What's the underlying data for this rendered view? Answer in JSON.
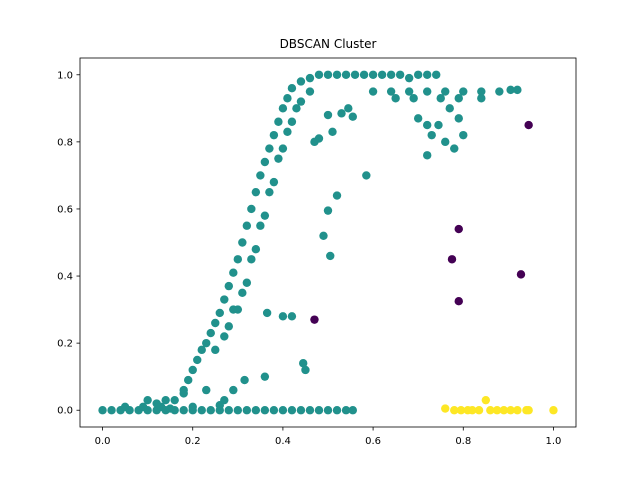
{
  "chart_data": {
    "type": "scatter",
    "title": "DBSCAN Cluster",
    "xlabel": "",
    "ylabel": "",
    "xlim": [
      -0.05,
      1.05
    ],
    "ylim": [
      -0.05,
      1.05
    ],
    "xticks": [
      0.0,
      0.2,
      0.4,
      0.6,
      0.8,
      1.0
    ],
    "xtick_labels": [
      "0.0",
      "0.2",
      "0.4",
      "0.6",
      "0.8",
      "1.0"
    ],
    "yticks": [
      0.0,
      0.2,
      0.4,
      0.6,
      0.8,
      1.0
    ],
    "ytick_labels": [
      "0.0",
      "0.2",
      "0.4",
      "0.6",
      "0.8",
      "1.0"
    ],
    "grid": false,
    "legend": "none",
    "colormap": "viridis",
    "series": [
      {
        "color": "#440154",
        "points": [
          [
            0.945,
            0.85
          ],
          [
            0.79,
            0.54
          ],
          [
            0.775,
            0.45
          ],
          [
            0.928,
            0.405
          ],
          [
            0.79,
            0.325
          ],
          [
            0.47,
            0.27
          ]
        ]
      },
      {
        "color": "#21918c",
        "points": [
          [
            0.0,
            0.0
          ],
          [
            0.02,
            0.0
          ],
          [
            0.04,
            0.0
          ],
          [
            0.06,
            0.0
          ],
          [
            0.08,
            0.0
          ],
          [
            0.1,
            0.0
          ],
          [
            0.12,
            0.0
          ],
          [
            0.14,
            0.0
          ],
          [
            0.16,
            0.0
          ],
          [
            0.18,
            0.0
          ],
          [
            0.2,
            0.0
          ],
          [
            0.22,
            0.0
          ],
          [
            0.24,
            0.0
          ],
          [
            0.26,
            0.0
          ],
          [
            0.28,
            0.0
          ],
          [
            0.3,
            0.0
          ],
          [
            0.32,
            0.0
          ],
          [
            0.34,
            0.0
          ],
          [
            0.36,
            0.0
          ],
          [
            0.38,
            0.0
          ],
          [
            0.4,
            0.0
          ],
          [
            0.42,
            0.0
          ],
          [
            0.44,
            0.0
          ],
          [
            0.46,
            0.0
          ],
          [
            0.48,
            0.0
          ],
          [
            0.5,
            0.0
          ],
          [
            0.52,
            0.0
          ],
          [
            0.54,
            0.0
          ],
          [
            0.555,
            0.0
          ],
          [
            0.05,
            0.01
          ],
          [
            0.1,
            0.03
          ],
          [
            0.13,
            0.01
          ],
          [
            0.16,
            0.03
          ],
          [
            0.18,
            0.06
          ],
          [
            0.19,
            0.09
          ],
          [
            0.2,
            0.12
          ],
          [
            0.21,
            0.15
          ],
          [
            0.22,
            0.18
          ],
          [
            0.23,
            0.2
          ],
          [
            0.24,
            0.23
          ],
          [
            0.25,
            0.26
          ],
          [
            0.26,
            0.29
          ],
          [
            0.27,
            0.33
          ],
          [
            0.28,
            0.37
          ],
          [
            0.29,
            0.41
          ],
          [
            0.3,
            0.45
          ],
          [
            0.31,
            0.5
          ],
          [
            0.32,
            0.55
          ],
          [
            0.33,
            0.6
          ],
          [
            0.34,
            0.65
          ],
          [
            0.35,
            0.7
          ],
          [
            0.36,
            0.74
          ],
          [
            0.37,
            0.78
          ],
          [
            0.38,
            0.82
          ],
          [
            0.39,
            0.86
          ],
          [
            0.4,
            0.9
          ],
          [
            0.41,
            0.93
          ],
          [
            0.42,
            0.96
          ],
          [
            0.44,
            0.98
          ],
          [
            0.46,
            0.99
          ],
          [
            0.48,
            1.0
          ],
          [
            0.5,
            1.0
          ],
          [
            0.52,
            1.0
          ],
          [
            0.54,
            1.0
          ],
          [
            0.56,
            1.0
          ],
          [
            0.58,
            1.0
          ],
          [
            0.6,
            1.0
          ],
          [
            0.62,
            1.0
          ],
          [
            0.64,
            1.0
          ],
          [
            0.66,
            1.0
          ],
          [
            0.68,
            0.99
          ],
          [
            0.7,
            1.0
          ],
          [
            0.72,
            1.0
          ],
          [
            0.74,
            1.0
          ],
          [
            0.25,
            0.18
          ],
          [
            0.27,
            0.22
          ],
          [
            0.29,
            0.3
          ],
          [
            0.31,
            0.35
          ],
          [
            0.33,
            0.45
          ],
          [
            0.35,
            0.55
          ],
          [
            0.37,
            0.65
          ],
          [
            0.39,
            0.75
          ],
          [
            0.41,
            0.83
          ],
          [
            0.43,
            0.9
          ],
          [
            0.28,
            0.25
          ],
          [
            0.3,
            0.3
          ],
          [
            0.32,
            0.38
          ],
          [
            0.34,
            0.48
          ],
          [
            0.36,
            0.58
          ],
          [
            0.38,
            0.68
          ],
          [
            0.4,
            0.78
          ],
          [
            0.42,
            0.86
          ],
          [
            0.44,
            0.92
          ],
          [
            0.46,
            0.95
          ],
          [
            0.6,
            0.95
          ],
          [
            0.64,
            0.95
          ],
          [
            0.68,
            0.95
          ],
          [
            0.72,
            0.95
          ],
          [
            0.76,
            0.95
          ],
          [
            0.8,
            0.95
          ],
          [
            0.84,
            0.95
          ],
          [
            0.88,
            0.95
          ],
          [
            0.905,
            0.955
          ],
          [
            0.92,
            0.955
          ],
          [
            0.65,
            0.93
          ],
          [
            0.69,
            0.93
          ],
          [
            0.75,
            0.93
          ],
          [
            0.79,
            0.93
          ],
          [
            0.84,
            0.93
          ],
          [
            0.7,
            0.87
          ],
          [
            0.72,
            0.85
          ],
          [
            0.73,
            0.82
          ],
          [
            0.745,
            0.85
          ],
          [
            0.76,
            0.8
          ],
          [
            0.78,
            0.78
          ],
          [
            0.72,
            0.76
          ],
          [
            0.8,
            0.82
          ],
          [
            0.79,
            0.87
          ],
          [
            0.77,
            0.9
          ],
          [
            0.49,
            0.52
          ],
          [
            0.505,
            0.46
          ],
          [
            0.5,
            0.595
          ],
          [
            0.52,
            0.64
          ],
          [
            0.585,
            0.7
          ],
          [
            0.51,
            0.83
          ],
          [
            0.48,
            0.81
          ],
          [
            0.47,
            0.8
          ],
          [
            0.5,
            0.88
          ],
          [
            0.53,
            0.885
          ],
          [
            0.555,
            0.875
          ],
          [
            0.545,
            0.9
          ],
          [
            0.4,
            0.28
          ],
          [
            0.42,
            0.28
          ],
          [
            0.365,
            0.29
          ],
          [
            0.18,
            0.05
          ],
          [
            0.23,
            0.06
          ],
          [
            0.29,
            0.06
          ],
          [
            0.315,
            0.09
          ],
          [
            0.36,
            0.1
          ],
          [
            0.445,
            0.14
          ],
          [
            0.45,
            0.12
          ],
          [
            0.27,
            0.03
          ],
          [
            0.2,
            0.01
          ],
          [
            0.26,
            0.015
          ],
          [
            0.12,
            0.02
          ],
          [
            0.15,
            0.005
          ],
          [
            0.14,
            0.03
          ],
          [
            0.09,
            0.01
          ]
        ]
      },
      {
        "color": "#fde725",
        "points": [
          [
            0.76,
            0.005
          ],
          [
            0.78,
            0.0
          ],
          [
            0.795,
            0.0
          ],
          [
            0.81,
            0.0
          ],
          [
            0.82,
            0.0
          ],
          [
            0.835,
            0.0
          ],
          [
            0.85,
            0.03
          ],
          [
            0.86,
            0.0
          ],
          [
            0.875,
            0.0
          ],
          [
            0.89,
            0.0
          ],
          [
            0.905,
            0.0
          ],
          [
            0.92,
            0.0
          ],
          [
            0.94,
            0.0
          ],
          [
            0.945,
            0.0
          ],
          [
            1.0,
            0.0
          ]
        ]
      }
    ]
  }
}
